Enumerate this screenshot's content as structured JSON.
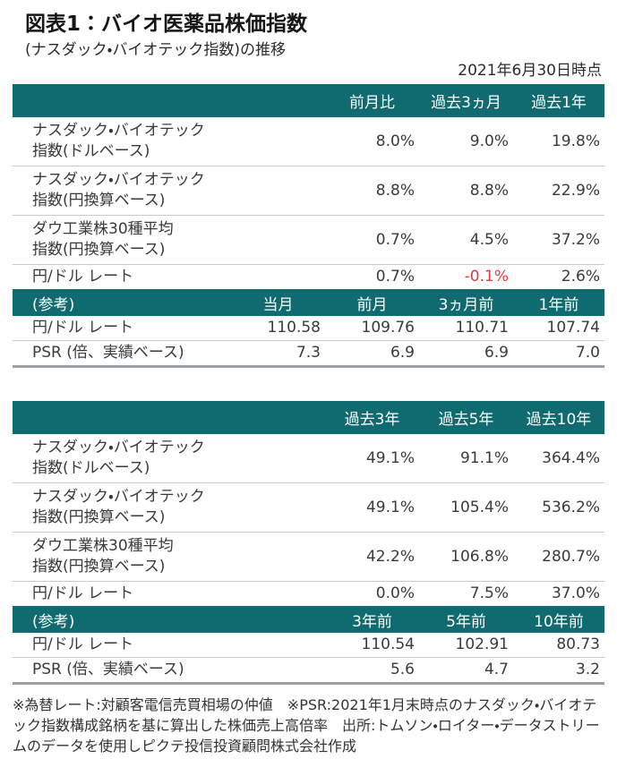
{
  "colors": {
    "accent_teal": "#106b70",
    "negative_red": "#e8383d"
  },
  "header": {
    "title": "図表1：バイオ医薬品株価指数",
    "subtitle": "(ナスダック・バイオテック指数)の推移",
    "as_of": "2021年6月30日時点"
  },
  "chart_data": [
    {
      "type": "table",
      "columns": [
        "前月比",
        "過去3ヵ月",
        "過去1年"
      ],
      "rows": [
        {
          "label1": "ナスダック・バイオテック",
          "label2": "指数(ドルベース)",
          "values": [
            "8.0%",
            "9.0%",
            "19.8%"
          ]
        },
        {
          "label1": "ナスダック・バイオテック",
          "label2": "指数(円換算ベース)",
          "values": [
            "8.8%",
            "8.8%",
            "22.9%"
          ]
        },
        {
          "label1": "ダウ工業株30種平均",
          "label2": "指数(円換算ベース)",
          "values": [
            "0.7%",
            "4.5%",
            "37.2%"
          ]
        },
        {
          "label1": "円/ドル レート",
          "label2": "",
          "values": [
            "0.7%",
            "-0.1%",
            "2.6%"
          ]
        }
      ],
      "negative_value_note": "-0.1% は赤色表示",
      "ref": {
        "label": "(参考)",
        "columns": [
          "当月",
          "前月",
          "3ヵ月前",
          "1年前"
        ],
        "rows": [
          {
            "label": "円/ドル レート",
            "values": [
              "110.58",
              "109.76",
              "110.71",
              "107.74"
            ]
          },
          {
            "label": "PSR (倍、実績ベース)",
            "values": [
              "7.3",
              "6.9",
              "6.9",
              "7.0"
            ]
          }
        ]
      }
    },
    {
      "type": "table",
      "columns": [
        "過去3年",
        "過去5年",
        "過去10年"
      ],
      "rows": [
        {
          "label1": "ナスダック・バイオテック",
          "label2": "指数(ドルベース)",
          "values": [
            "49.1%",
            "91.1%",
            "364.4%"
          ]
        },
        {
          "label1": "ナスダック・バイオテック",
          "label2": "指数(円換算ベース)",
          "values": [
            "49.1%",
            "105.4%",
            "536.2%"
          ]
        },
        {
          "label1": "ダウ工業株30種平均",
          "label2": "指数(円換算ベース)",
          "values": [
            "42.2%",
            "106.8%",
            "280.7%"
          ]
        },
        {
          "label1": "円/ドル レート",
          "label2": "",
          "values": [
            "0.0%",
            "7.5%",
            "37.0%"
          ]
        }
      ],
      "ref": {
        "label": "(参考)",
        "columns": [
          "3年前",
          "5年前",
          "10年前"
        ],
        "rows": [
          {
            "label": "円/ドル レート",
            "values": [
              "110.54",
              "102.91",
              "80.73"
            ]
          },
          {
            "label": "PSR (倍、実績ベース)",
            "values": [
              "5.6",
              "4.7",
              "3.2"
            ]
          }
        ]
      }
    }
  ],
  "footnote": "※為替レート:対顧客電信売買相場の仲値　※PSR:2021年1月末時点のナスダック・バイオテック指数構成銘柄を基に算出した株価売上高倍率　出所:トムソン・ロイター・データストリームのデータを使用しピクテ投信投資顧問株式会社作成"
}
